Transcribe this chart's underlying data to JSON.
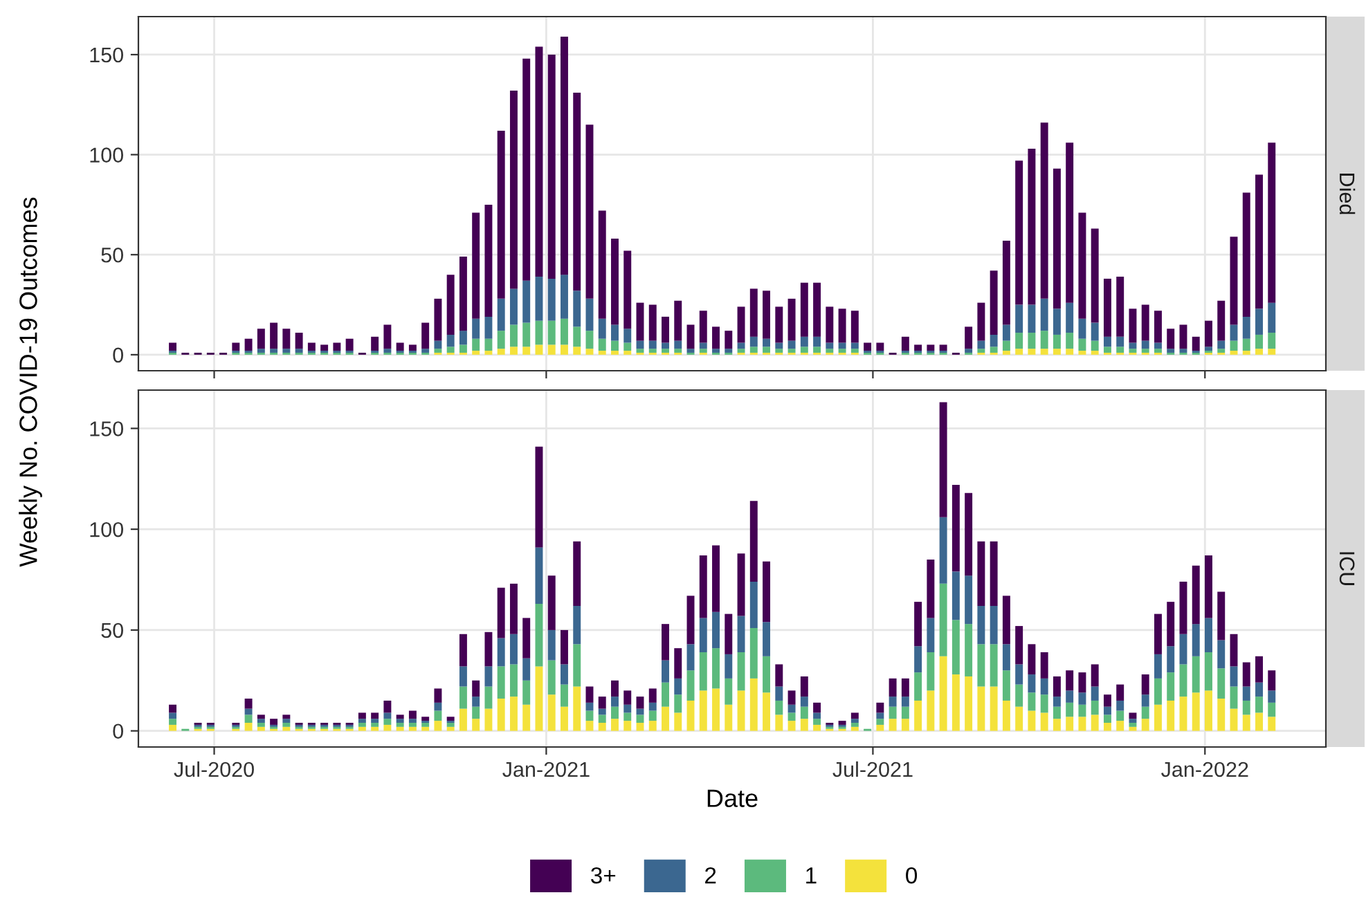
{
  "chart_data": [
    {
      "type": "bar",
      "annotations": [
        "Died"
      ],
      "ylabel": "Weekly No. COVID-19 Outcomes",
      "stacked": true,
      "grid": true,
      "tick_labels": "y",
      "legend": "bottom",
      "x": [
        "2020-06-08",
        "2020-06-15",
        "2020-06-22",
        "2020-06-29",
        "2020-07-06",
        "2020-07-13",
        "2020-07-20",
        "2020-07-27",
        "2020-08-03",
        "2020-08-10",
        "2020-08-17",
        "2020-08-24",
        "2020-08-31",
        "2020-09-07",
        "2020-09-14",
        "2020-09-21",
        "2020-09-28",
        "2020-10-05",
        "2020-10-12",
        "2020-10-19",
        "2020-10-26",
        "2020-11-02",
        "2020-11-09",
        "2020-11-16",
        "2020-11-23",
        "2020-11-30",
        "2020-12-07",
        "2020-12-14",
        "2020-12-21",
        "2020-12-28",
        "2021-01-04",
        "2021-01-11",
        "2021-01-18",
        "2021-01-25",
        "2021-02-01",
        "2021-02-08",
        "2021-02-15",
        "2021-02-22",
        "2021-03-01",
        "2021-03-08",
        "2021-03-15",
        "2021-03-22",
        "2021-03-29",
        "2021-04-05",
        "2021-04-12",
        "2021-04-19",
        "2021-04-26",
        "2021-05-03",
        "2021-05-10",
        "2021-05-17",
        "2021-05-24",
        "2021-05-31",
        "2021-06-07",
        "2021-06-14",
        "2021-06-21",
        "2021-06-28",
        "2021-07-05",
        "2021-07-12",
        "2021-07-19",
        "2021-07-26",
        "2021-08-02",
        "2021-08-09",
        "2021-08-16",
        "2021-08-23",
        "2021-08-30",
        "2021-09-06",
        "2021-09-13",
        "2021-09-20",
        "2021-09-27",
        "2021-10-04",
        "2021-10-11",
        "2021-10-18",
        "2021-10-25",
        "2021-11-01",
        "2021-11-08",
        "2021-11-15",
        "2021-11-22",
        "2021-11-29",
        "2021-12-06",
        "2021-12-13",
        "2021-12-20",
        "2021-12-27",
        "2022-01-03",
        "2022-01-10",
        "2022-01-17",
        "2022-01-24",
        "2022-01-31",
        "2022-02-07"
      ],
      "xlim": [
        "2020-05-20",
        "2022-03-09"
      ],
      "xticks": [
        {
          "value": "2020-07-01",
          "label": null
        },
        {
          "value": "2021-01-01",
          "label": null
        },
        {
          "value": "2021-07-01",
          "label": null
        },
        {
          "value": "2022-01-01",
          "label": null
        }
      ],
      "ylim": [
        -8,
        169
      ],
      "yticks": [
        0,
        50,
        100,
        150
      ],
      "series": [
        {
          "name": "0",
          "color": "#f4e23c",
          "values": [
            0,
            0,
            0,
            0,
            0,
            0,
            0,
            0,
            0,
            0,
            0,
            0,
            0,
            0,
            0,
            0,
            0,
            0,
            0,
            0,
            0,
            1,
            1,
            1,
            2,
            2,
            3,
            4,
            4,
            5,
            5,
            5,
            4,
            3,
            2,
            2,
            2,
            1,
            1,
            1,
            1,
            0,
            1,
            0,
            0,
            1,
            1,
            1,
            1,
            1,
            1,
            1,
            1,
            1,
            1,
            0,
            0,
            0,
            0,
            0,
            0,
            0,
            0,
            0,
            1,
            1,
            2,
            3,
            3,
            3,
            3,
            3,
            2,
            2,
            1,
            1,
            1,
            1,
            1,
            0,
            0,
            0,
            1,
            1,
            2,
            2,
            3,
            3
          ]
        },
        {
          "name": "1",
          "color": "#5cba7d",
          "values": [
            1,
            0,
            0,
            0,
            0,
            1,
            1,
            1,
            1,
            1,
            1,
            1,
            1,
            1,
            1,
            0,
            1,
            1,
            1,
            1,
            1,
            2,
            3,
            4,
            6,
            6,
            9,
            11,
            12,
            12,
            12,
            13,
            10,
            9,
            6,
            5,
            4,
            2,
            2,
            2,
            2,
            1,
            2,
            1,
            1,
            2,
            3,
            3,
            2,
            2,
            3,
            3,
            2,
            2,
            2,
            1,
            1,
            0,
            1,
            1,
            1,
            1,
            0,
            1,
            2,
            3,
            5,
            8,
            8,
            9,
            7,
            8,
            6,
            5,
            3,
            3,
            2,
            2,
            2,
            1,
            1,
            1,
            1,
            2,
            5,
            6,
            7,
            8
          ]
        },
        {
          "name": "2",
          "color": "#3b6790",
          "values": [
            1,
            0,
            0,
            0,
            0,
            1,
            1,
            2,
            2,
            2,
            2,
            1,
            1,
            1,
            1,
            0,
            1,
            2,
            1,
            1,
            2,
            4,
            6,
            7,
            10,
            11,
            16,
            18,
            21,
            22,
            21,
            22,
            18,
            16,
            10,
            8,
            7,
            4,
            4,
            3,
            4,
            2,
            3,
            2,
            2,
            3,
            5,
            4,
            3,
            4,
            5,
            5,
            3,
            3,
            3,
            1,
            1,
            0,
            1,
            1,
            1,
            1,
            0,
            2,
            4,
            6,
            8,
            14,
            14,
            16,
            13,
            15,
            10,
            9,
            5,
            5,
            3,
            4,
            3,
            2,
            2,
            1,
            2,
            4,
            8,
            11,
            13,
            15
          ]
        },
        {
          "name": "3+",
          "color": "#440154",
          "values": [
            4,
            1,
            1,
            1,
            1,
            4,
            6,
            10,
            13,
            10,
            8,
            4,
            3,
            4,
            6,
            1,
            7,
            12,
            4,
            3,
            13,
            21,
            30,
            37,
            53,
            56,
            84,
            99,
            111,
            115,
            112,
            119,
            99,
            87,
            54,
            43,
            39,
            19,
            18,
            13,
            20,
            12,
            16,
            11,
            9,
            18,
            24,
            24,
            18,
            21,
            27,
            27,
            18,
            17,
            16,
            4,
            4,
            1,
            7,
            3,
            3,
            3,
            1,
            11,
            19,
            32,
            42,
            72,
            78,
            88,
            70,
            80,
            53,
            47,
            29,
            30,
            17,
            18,
            16,
            10,
            12,
            7,
            13,
            20,
            44,
            62,
            67,
            80
          ]
        }
      ]
    },
    {
      "type": "bar",
      "annotations": [
        "ICU"
      ],
      "xlabel": "Date",
      "stacked": true,
      "grid": true,
      "x": [
        "2020-06-08",
        "2020-06-15",
        "2020-06-22",
        "2020-06-29",
        "2020-07-06",
        "2020-07-13",
        "2020-07-20",
        "2020-07-27",
        "2020-08-03",
        "2020-08-10",
        "2020-08-17",
        "2020-08-24",
        "2020-08-31",
        "2020-09-07",
        "2020-09-14",
        "2020-09-21",
        "2020-09-28",
        "2020-10-05",
        "2020-10-12",
        "2020-10-19",
        "2020-10-26",
        "2020-11-02",
        "2020-11-09",
        "2020-11-16",
        "2020-11-23",
        "2020-11-30",
        "2020-12-07",
        "2020-12-14",
        "2020-12-21",
        "2020-12-28",
        "2021-01-04",
        "2021-01-11",
        "2021-01-18",
        "2021-01-25",
        "2021-02-01",
        "2021-02-08",
        "2021-02-15",
        "2021-02-22",
        "2021-03-01",
        "2021-03-08",
        "2021-03-15",
        "2021-03-22",
        "2021-03-29",
        "2021-04-05",
        "2021-04-12",
        "2021-04-19",
        "2021-04-26",
        "2021-05-03",
        "2021-05-10",
        "2021-05-17",
        "2021-05-24",
        "2021-05-31",
        "2021-06-07",
        "2021-06-14",
        "2021-06-21",
        "2021-06-28",
        "2021-07-05",
        "2021-07-12",
        "2021-07-19",
        "2021-07-26",
        "2021-08-02",
        "2021-08-09",
        "2021-08-16",
        "2021-08-23",
        "2021-08-30",
        "2021-09-06",
        "2021-09-13",
        "2021-09-20",
        "2021-09-27",
        "2021-10-04",
        "2021-10-11",
        "2021-10-18",
        "2021-10-25",
        "2021-11-01",
        "2021-11-08",
        "2021-11-15",
        "2021-11-22",
        "2021-11-29",
        "2021-12-06",
        "2021-12-13",
        "2021-12-20",
        "2021-12-27",
        "2022-01-03",
        "2022-01-10",
        "2022-01-17",
        "2022-01-24",
        "2022-01-31",
        "2022-02-07"
      ],
      "xlim": [
        "2020-05-20",
        "2022-03-09"
      ],
      "xticks": [
        {
          "value": "2020-07-01",
          "label": "Jul-2020"
        },
        {
          "value": "2021-01-01",
          "label": "Jan-2021"
        },
        {
          "value": "2021-07-01",
          "label": "Jul-2021"
        },
        {
          "value": "2022-01-01",
          "label": "Jan-2022"
        }
      ],
      "ylim": [
        -8,
        169
      ],
      "yticks": [
        0,
        50,
        100,
        150
      ],
      "series": [
        {
          "color": "#f4e23c",
          "values": [
            3,
            0,
            1,
            1,
            0,
            1,
            4,
            2,
            1,
            2,
            1,
            1,
            1,
            1,
            1,
            2,
            2,
            3,
            2,
            2,
            2,
            5,
            2,
            11,
            6,
            11,
            16,
            17,
            13,
            32,
            18,
            12,
            22,
            5,
            4,
            6,
            5,
            4,
            5,
            12,
            9,
            15,
            20,
            21,
            13,
            20,
            26,
            19,
            8,
            5,
            6,
            3,
            1,
            1,
            2,
            0,
            3,
            6,
            6,
            15,
            20,
            37,
            28,
            27,
            22,
            22,
            15,
            12,
            10,
            9,
            6,
            7,
            7,
            8,
            4,
            5,
            2,
            6,
            13,
            15,
            17,
            19,
            20,
            16,
            11,
            8,
            9,
            7
          ]
        },
        {
          "color": "#5cba7d",
          "values": [
            3,
            1,
            1,
            1,
            0,
            1,
            4,
            2,
            1,
            2,
            1,
            1,
            1,
            1,
            1,
            2,
            2,
            3,
            2,
            2,
            2,
            5,
            2,
            11,
            6,
            11,
            16,
            16,
            12,
            31,
            17,
            11,
            21,
            5,
            4,
            6,
            4,
            4,
            5,
            12,
            9,
            15,
            19,
            20,
            13,
            19,
            25,
            18,
            7,
            4,
            6,
            3,
            1,
            1,
            2,
            1,
            3,
            6,
            6,
            14,
            19,
            36,
            27,
            26,
            21,
            21,
            15,
            11,
            9,
            9,
            6,
            7,
            6,
            7,
            4,
            5,
            2,
            6,
            13,
            14,
            16,
            18,
            19,
            15,
            11,
            7,
            8,
            7
          ]
        },
        {
          "color": "#3b6790",
          "values": [
            3,
            0,
            1,
            1,
            0,
            1,
            3,
            2,
            1,
            2,
            1,
            1,
            1,
            1,
            1,
            2,
            2,
            3,
            2,
            2,
            1,
            4,
            1,
            10,
            5,
            10,
            14,
            15,
            11,
            28,
            15,
            10,
            19,
            4,
            3,
            5,
            4,
            3,
            4,
            11,
            8,
            13,
            17,
            18,
            12,
            18,
            23,
            17,
            7,
            4,
            5,
            3,
            1,
            1,
            2,
            0,
            3,
            5,
            5,
            13,
            17,
            33,
            24,
            24,
            19,
            19,
            13,
            10,
            9,
            8,
            5,
            6,
            6,
            7,
            4,
            5,
            2,
            6,
            12,
            13,
            15,
            16,
            17,
            14,
            10,
            7,
            7,
            6
          ]
        },
        {
          "color": "#440154",
          "values": [
            4,
            0,
            1,
            1,
            0,
            1,
            5,
            2,
            3,
            2,
            1,
            1,
            1,
            1,
            1,
            3,
            3,
            6,
            2,
            4,
            2,
            7,
            2,
            16,
            8,
            17,
            25,
            25,
            20,
            50,
            27,
            17,
            32,
            8,
            6,
            8,
            7,
            6,
            7,
            18,
            15,
            24,
            31,
            33,
            20,
            31,
            40,
            30,
            11,
            7,
            10,
            5,
            1,
            2,
            3,
            0,
            5,
            9,
            9,
            22,
            29,
            57,
            43,
            41,
            32,
            32,
            24,
            19,
            15,
            13,
            10,
            10,
            10,
            11,
            6,
            8,
            3,
            10,
            20,
            22,
            26,
            29,
            31,
            24,
            16,
            12,
            13,
            10
          ]
        }
      ]
    }
  ]
}
